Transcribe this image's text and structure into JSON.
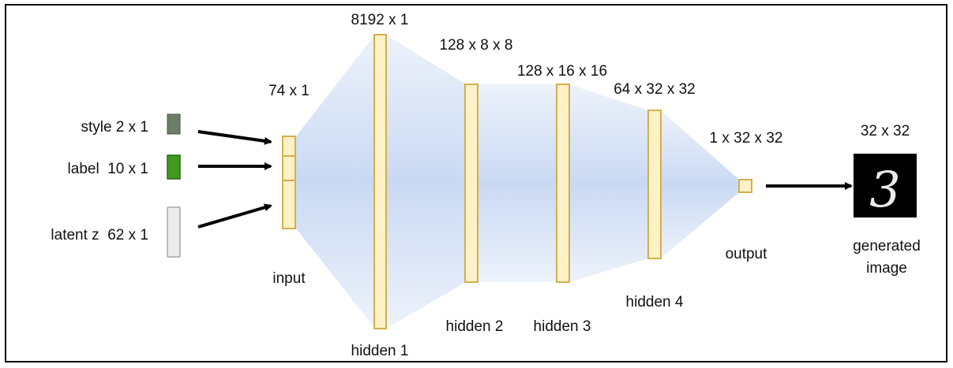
{
  "inputs": [
    {
      "label": "style 2 x 1",
      "color": "#6b7f66"
    },
    {
      "label": "label  10 x 1",
      "color": "#3f9a1f"
    },
    {
      "label": "latent z  62 x 1",
      "color": "#ececec"
    }
  ],
  "layers": {
    "input": {
      "name": "input",
      "dims": "74 x 1"
    },
    "hidden1": {
      "name": "hidden 1",
      "dims": "8192 x 1"
    },
    "hidden2": {
      "name": "hidden 2",
      "dims": "128 x 8 x 8"
    },
    "hidden3": {
      "name": "hidden 3",
      "dims": "128 x 16 x 16"
    },
    "hidden4": {
      "name": "hidden 4",
      "dims": "64 x 32 x 32"
    },
    "output": {
      "name": "output",
      "dims": "1 x 32 x 32"
    }
  },
  "generated": {
    "dims": "32 x 32",
    "caption_line1": "generated",
    "caption_line2": "image",
    "digit": "3"
  },
  "colors": {
    "layer_fill": "#fdf1c8",
    "layer_stroke": "#d4b04a",
    "flow": "#c6d6f1",
    "arrow": "#000000",
    "frame": "#000000"
  }
}
